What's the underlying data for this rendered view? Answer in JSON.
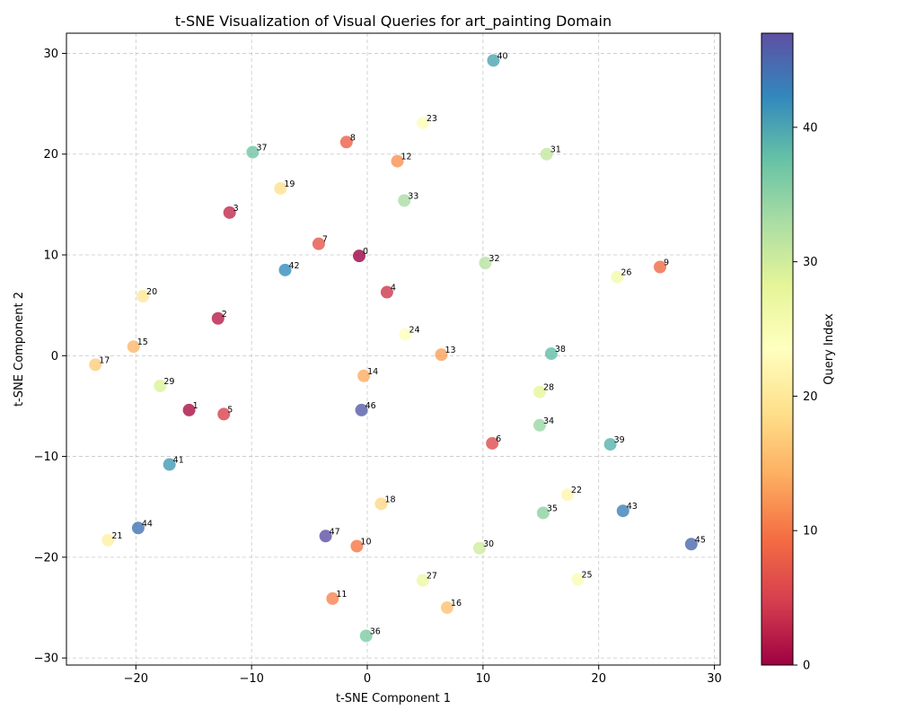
{
  "chart_data": {
    "type": "scatter",
    "title": "t-SNE Visualization of Visual Queries for art_painting Domain",
    "xlabel": "t-SNE Component 1",
    "ylabel": "t-SNE Component 2",
    "xlim": [
      -26,
      30.5
    ],
    "ylim": [
      -30.7,
      32
    ],
    "xticks": [
      -20,
      -10,
      0,
      10,
      20,
      30
    ],
    "xtick_labels": [
      "−20",
      "−10",
      "0",
      "10",
      "20",
      "30"
    ],
    "yticks": [
      -30,
      -20,
      -10,
      0,
      10,
      20,
      30
    ],
    "ytick_labels": [
      "−30",
      "−20",
      "−10",
      "0",
      "10",
      "20",
      "30"
    ],
    "grid": true,
    "colormap": "Spectral",
    "colorbar": {
      "label": "Query Index",
      "range": [
        0,
        47
      ],
      "ticks": [
        0,
        10,
        20,
        30,
        40
      ],
      "tick_labels": [
        "0",
        "10",
        "20",
        "30",
        "40"
      ]
    },
    "points": [
      {
        "label": "0",
        "x": -0.7,
        "y": 9.9
      },
      {
        "label": "1",
        "x": -15.4,
        "y": -5.4
      },
      {
        "label": "2",
        "x": -12.9,
        "y": 3.7
      },
      {
        "label": "3",
        "x": -11.9,
        "y": 14.2
      },
      {
        "label": "4",
        "x": 1.7,
        "y": 6.3
      },
      {
        "label": "5",
        "x": -12.4,
        "y": -5.8
      },
      {
        "label": "6",
        "x": 10.8,
        "y": -8.7
      },
      {
        "label": "7",
        "x": -4.2,
        "y": 11.1
      },
      {
        "label": "8",
        "x": -1.8,
        "y": 21.2
      },
      {
        "label": "9",
        "x": 25.3,
        "y": 8.8
      },
      {
        "label": "10",
        "x": -0.9,
        "y": -18.9
      },
      {
        "label": "11",
        "x": -3.0,
        "y": -24.1
      },
      {
        "label": "12",
        "x": 2.6,
        "y": 19.3
      },
      {
        "label": "13",
        "x": 6.4,
        "y": 0.1
      },
      {
        "label": "14",
        "x": -0.3,
        "y": -2.0
      },
      {
        "label": "15",
        "x": -20.2,
        "y": 0.9
      },
      {
        "label": "16",
        "x": 6.9,
        "y": -25.0
      },
      {
        "label": "17",
        "x": -23.5,
        "y": -0.9
      },
      {
        "label": "18",
        "x": 1.2,
        "y": -14.7
      },
      {
        "label": "19",
        "x": -7.5,
        "y": 16.6
      },
      {
        "label": "20",
        "x": -19.4,
        "y": 5.9
      },
      {
        "label": "21",
        "x": -22.4,
        "y": -18.3
      },
      {
        "label": "22",
        "x": 17.3,
        "y": -13.8
      },
      {
        "label": "23",
        "x": 4.8,
        "y": 23.1
      },
      {
        "label": "24",
        "x": 3.3,
        "y": 2.1
      },
      {
        "label": "25",
        "x": 18.2,
        "y": -22.2
      },
      {
        "label": "26",
        "x": 21.6,
        "y": 7.8
      },
      {
        "label": "27",
        "x": 4.8,
        "y": -22.3
      },
      {
        "label": "28",
        "x": 14.9,
        "y": -3.6
      },
      {
        "label": "29",
        "x": -17.9,
        "y": -3.0
      },
      {
        "label": "30",
        "x": 9.7,
        "y": -19.1
      },
      {
        "label": "31",
        "x": 15.5,
        "y": 20.0
      },
      {
        "label": "32",
        "x": 10.2,
        "y": 9.2
      },
      {
        "label": "33",
        "x": 3.2,
        "y": 15.4
      },
      {
        "label": "34",
        "x": 14.9,
        "y": -6.9
      },
      {
        "label": "35",
        "x": 15.2,
        "y": -15.6
      },
      {
        "label": "36",
        "x": -0.1,
        "y": -27.8
      },
      {
        "label": "37",
        "x": -9.9,
        "y": 20.2
      },
      {
        "label": "38",
        "x": 15.9,
        "y": 0.2
      },
      {
        "label": "39",
        "x": 21.0,
        "y": -8.8
      },
      {
        "label": "40",
        "x": 10.9,
        "y": 29.3
      },
      {
        "label": "41",
        "x": -17.1,
        "y": -10.8
      },
      {
        "label": "42",
        "x": -7.1,
        "y": 8.5
      },
      {
        "label": "43",
        "x": 22.1,
        "y": -15.4
      },
      {
        "label": "44",
        "x": -19.8,
        "y": -17.1
      },
      {
        "label": "45",
        "x": 28.0,
        "y": -18.7
      },
      {
        "label": "46",
        "x": -0.5,
        "y": -5.4
      },
      {
        "label": "47",
        "x": -3.6,
        "y": -17.9
      }
    ]
  }
}
